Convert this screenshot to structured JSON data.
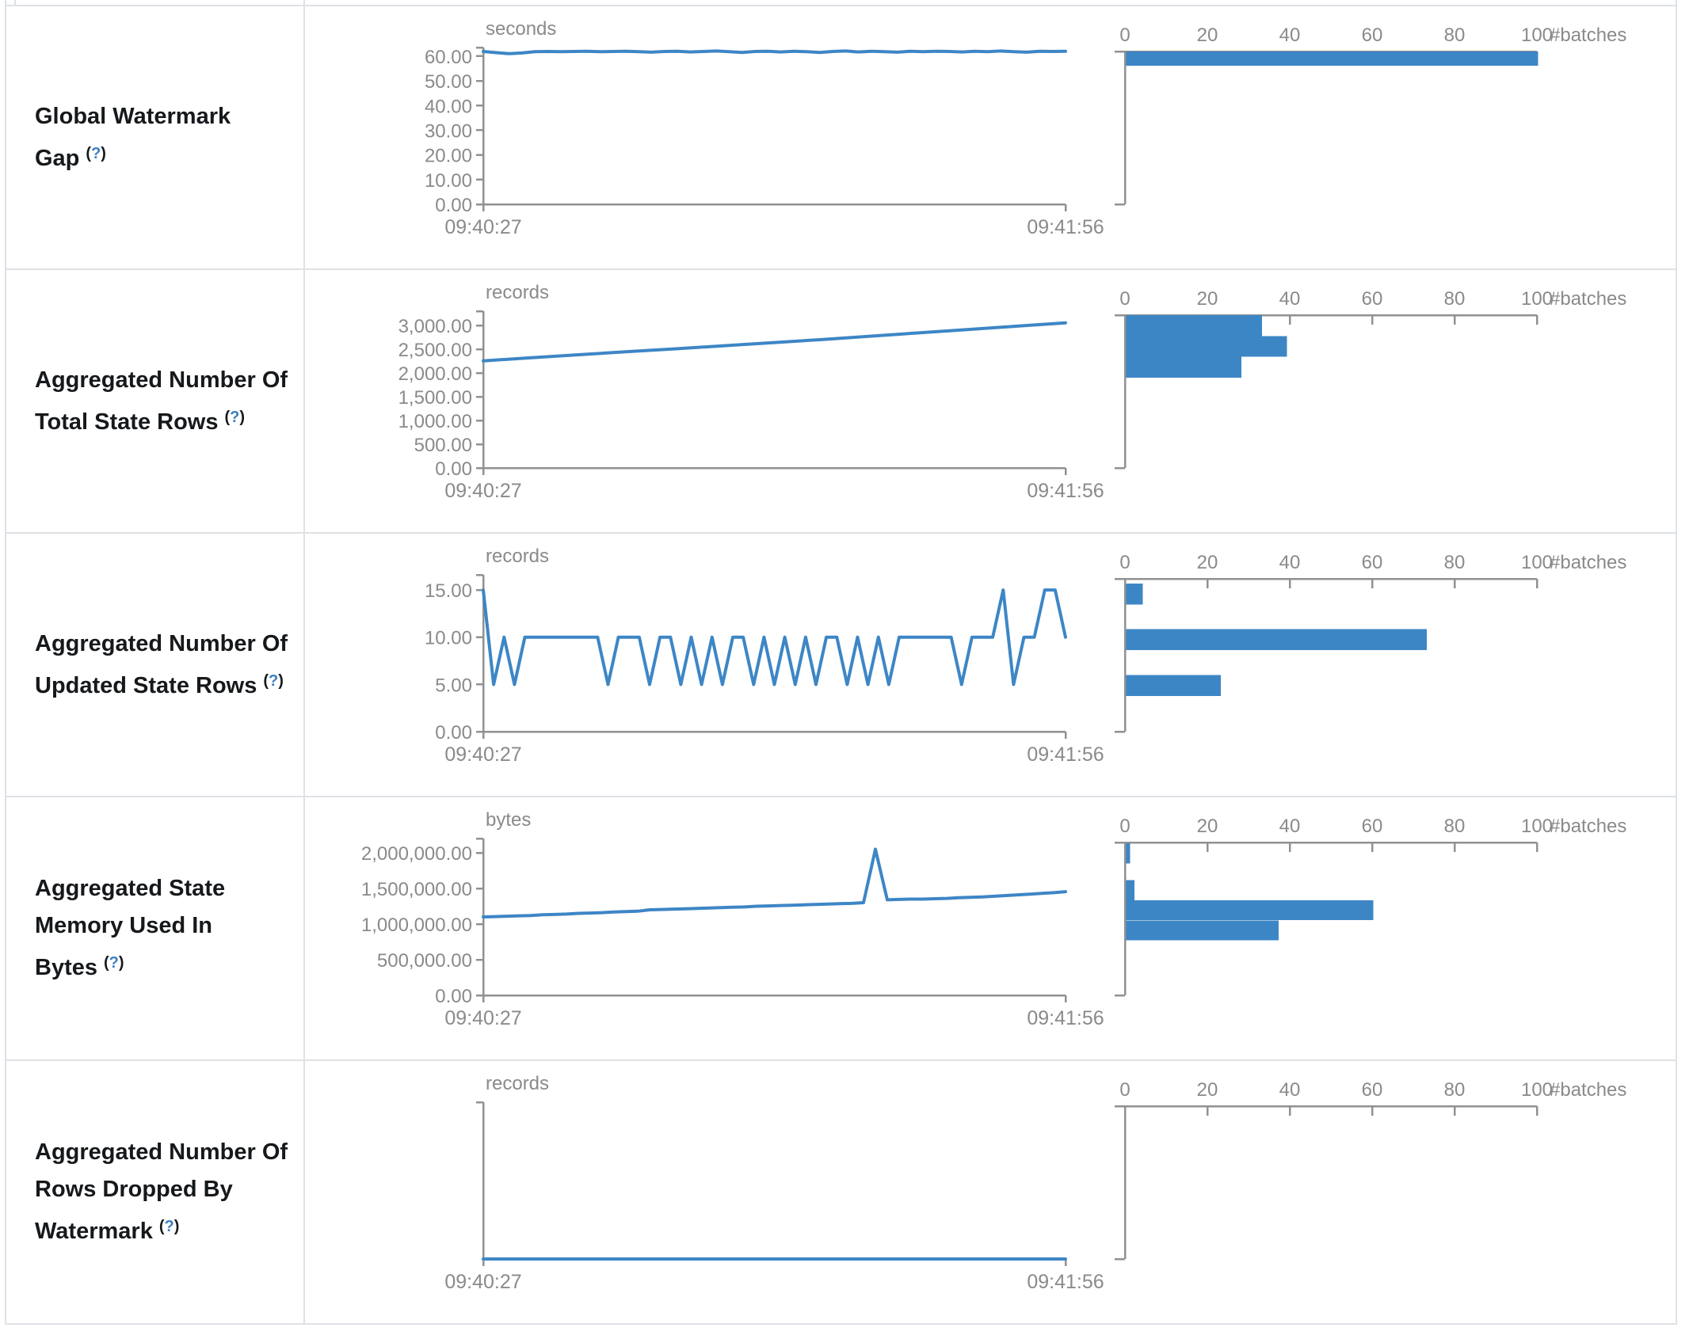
{
  "colors": {
    "accent_blue": "#3d86c6",
    "axis_gray": "#919191",
    "text_gray": "#8a8a8a",
    "label_dark": "#16191c",
    "help_blue": "#3a7fc1",
    "border": "#dee2e6"
  },
  "help": {
    "open": "(",
    "q": "?",
    "close": ")"
  },
  "axis": {
    "x_start": "09:40:27",
    "x_end": "09:41:56",
    "batches_label": "#batches",
    "batches_ticks": [
      0,
      20,
      40,
      60,
      80,
      100
    ]
  },
  "rows": [
    {
      "label": "Global Watermark Gap",
      "timeline": {
        "type": "line",
        "unit": "seconds",
        "x_start": "09:40:27",
        "x_end": "09:41:56",
        "ylim": [
          0,
          63.5
        ],
        "yticks": [
          [
            0,
            "0.00"
          ],
          [
            10,
            "10.00"
          ],
          [
            20,
            "20.00"
          ],
          [
            30,
            "30.00"
          ],
          [
            40,
            "40.00"
          ],
          [
            50,
            "50.00"
          ],
          [
            60,
            "60.00"
          ]
        ],
        "values": [
          61.9,
          61.4,
          61.0,
          61.3,
          61.8,
          61.9,
          61.8,
          61.9,
          62.0,
          61.8,
          61.9,
          62.0,
          61.8,
          61.6,
          61.9,
          62.0,
          61.7,
          61.9,
          62.1,
          61.8,
          61.5,
          61.9,
          62.0,
          61.7,
          62.0,
          61.8,
          61.5,
          61.9,
          62.1,
          61.7,
          62.0,
          61.8,
          61.6,
          62.0,
          61.8,
          62.0,
          61.9,
          61.7,
          62.0,
          61.8,
          62.1,
          61.8,
          61.6,
          62.0,
          61.9,
          62.0
        ]
      },
      "histogram": {
        "type": "bar",
        "xlabel": "#batches",
        "xlim": [
          0,
          100
        ],
        "bins": [
          [
            63.5,
            57.6,
            100
          ]
        ]
      }
    },
    {
      "label": "Aggregated Number Of Total State Rows",
      "timeline": {
        "type": "line",
        "unit": "records",
        "x_start": "09:40:27",
        "x_end": "09:41:56",
        "ylim": [
          0,
          3300
        ],
        "yticks": [
          [
            0,
            "0.00"
          ],
          [
            500,
            "500.00"
          ],
          [
            1000,
            "1,000.00"
          ],
          [
            1500,
            "1,500.00"
          ],
          [
            2000,
            "2,000.00"
          ],
          [
            2500,
            "2,500.00"
          ],
          [
            3000,
            "3,000.00"
          ]
        ],
        "values": [
          2255,
          2320,
          2385,
          2450,
          2510,
          2575,
          2640,
          2705,
          2775,
          2845,
          2915,
          2985,
          3055
        ]
      },
      "histogram": {
        "type": "bar",
        "xlabel": "#batches",
        "xlim": [
          0,
          100
        ],
        "bins": [
          [
            3300,
            2850,
            33
          ],
          [
            2850,
            2400,
            39
          ],
          [
            2400,
            1950,
            28
          ]
        ]
      }
    },
    {
      "label": "Aggregated Number Of Updated State Rows",
      "timeline": {
        "type": "line",
        "unit": "records",
        "x_start": "09:40:27",
        "x_end": "09:41:56",
        "ylim": [
          0,
          16.6
        ],
        "yticks": [
          [
            0,
            "0.00"
          ],
          [
            5,
            "5.00"
          ],
          [
            10,
            "10.00"
          ],
          [
            15,
            "15.00"
          ]
        ],
        "values": [
          15,
          5,
          10,
          5,
          10,
          10,
          10,
          10,
          10,
          10,
          10,
          10,
          5,
          10,
          10,
          10,
          5,
          10,
          10,
          5,
          10,
          5,
          10,
          5,
          10,
          10,
          5,
          10,
          5,
          10,
          5,
          10,
          5,
          10,
          10,
          5,
          10,
          5,
          10,
          5,
          10,
          10,
          10,
          10,
          10,
          10,
          5,
          10,
          10,
          10,
          15,
          5,
          10,
          10,
          15,
          15,
          10
        ]
      },
      "histogram": {
        "type": "bar",
        "xlabel": "#batches",
        "xlim": [
          0,
          100
        ],
        "bins": [
          [
            16.1,
            13.8,
            4
          ],
          [
            11.15,
            8.85,
            73
          ],
          [
            6.15,
            3.85,
            23
          ]
        ]
      }
    },
    {
      "label": "Aggregated State Memory Used In Bytes",
      "timeline": {
        "type": "line",
        "unit": "bytes",
        "x_start": "09:40:27",
        "x_end": "09:41:56",
        "ylim": [
          0,
          2200000
        ],
        "yticks": [
          [
            0,
            "0.00"
          ],
          [
            500000,
            "500,000.00"
          ],
          [
            1000000,
            "1,000,000.00"
          ],
          [
            1500000,
            "1,500,000.00"
          ],
          [
            2000000,
            "2,000,000.00"
          ]
        ],
        "values": [
          1100000,
          1105000,
          1110000,
          1115000,
          1120000,
          1130000,
          1135000,
          1140000,
          1150000,
          1155000,
          1160000,
          1170000,
          1175000,
          1180000,
          1200000,
          1205000,
          1210000,
          1215000,
          1220000,
          1225000,
          1230000,
          1235000,
          1240000,
          1250000,
          1255000,
          1260000,
          1265000,
          1270000,
          1275000,
          1280000,
          1285000,
          1290000,
          1300000,
          2050000,
          1340000,
          1345000,
          1350000,
          1350000,
          1355000,
          1360000,
          1370000,
          1375000,
          1380000,
          1390000,
          1400000,
          1410000,
          1420000,
          1430000,
          1440000,
          1455000
        ]
      },
      "histogram": {
        "type": "bar",
        "xlabel": "#batches",
        "xlim": [
          0,
          100
        ],
        "bins": [
          [
            2190000,
            1900000,
            1
          ],
          [
            1660000,
            1370000,
            2
          ],
          [
            1370000,
            1080000,
            60
          ],
          [
            1080000,
            790000,
            37
          ]
        ]
      }
    },
    {
      "label": "Aggregated Number Of Rows Dropped By Watermark",
      "timeline": {
        "type": "line",
        "unit": "records",
        "x_start": "09:40:27",
        "x_end": "09:41:56",
        "ylim": [
          0,
          1
        ],
        "yticks": [],
        "values": [
          0,
          0
        ]
      },
      "histogram": {
        "type": "bar",
        "xlabel": "#batches",
        "xlim": [
          0,
          100
        ],
        "bins": []
      }
    }
  ]
}
